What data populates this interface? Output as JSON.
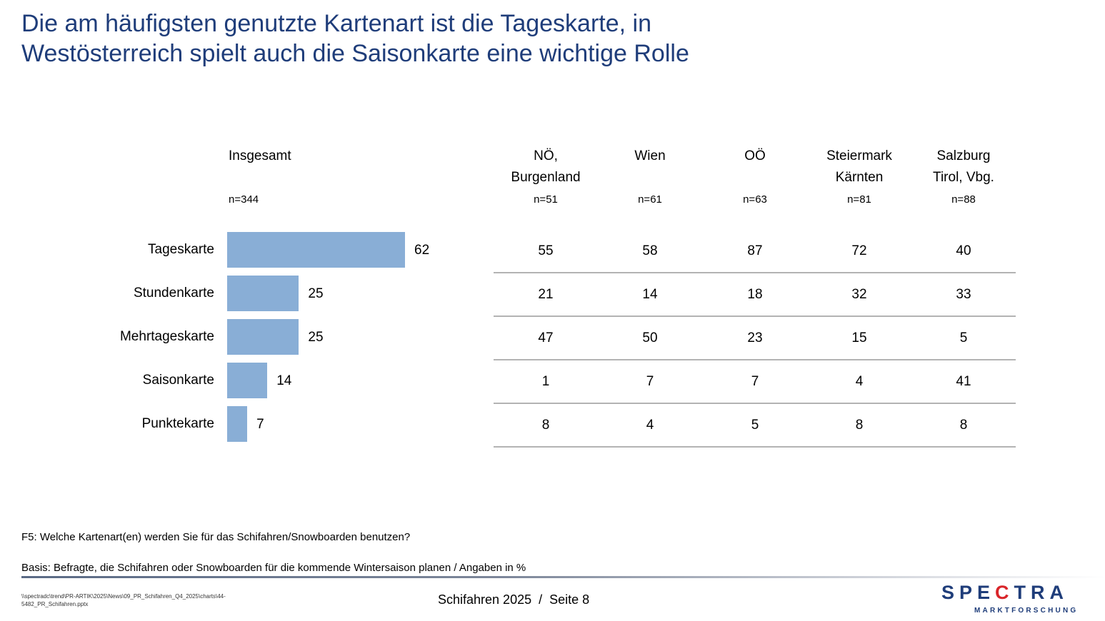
{
  "title": {
    "line1": "Die am häufigsten genutzte Kartenart ist die Tageskarte, in",
    "line2": "Westösterreich spielt auch die Saisonkarte eine wichtige Rolle"
  },
  "chart_data": {
    "type": "bar",
    "orientation": "horizontal",
    "title": "Insgesamt",
    "n": "n=344",
    "categories": [
      "Tageskarte",
      "Stundenkarte",
      "Mehrtageskarte",
      "Saisonkarte",
      "Punktekarte"
    ],
    "values": [
      62,
      25,
      25,
      14,
      7
    ],
    "value_labels": [
      "62",
      "25",
      "25",
      "14",
      "7"
    ],
    "xlim": [
      0,
      100
    ],
    "unit": "%",
    "bar_color": "#89aed6",
    "grid": false,
    "legend": "none"
  },
  "table": {
    "columns": [
      {
        "line1": "NÖ,",
        "line2": "Burgenland",
        "n": "n=51"
      },
      {
        "line1": "Wien",
        "line2": "",
        "n": "n=61"
      },
      {
        "line1": "OÖ",
        "line2": "",
        "n": "n=63"
      },
      {
        "line1": "Steiermark",
        "line2": "Kärnten",
        "n": "n=81"
      },
      {
        "line1": "Salzburg",
        "line2": "Tirol, Vbg.",
        "n": "n=88"
      }
    ],
    "rows": [
      [
        "55",
        "58",
        "87",
        "72",
        "40"
      ],
      [
        "21",
        "14",
        "18",
        "32",
        "33"
      ],
      [
        "47",
        "50",
        "23",
        "15",
        "5"
      ],
      [
        "1",
        "7",
        "7",
        "4",
        "41"
      ],
      [
        "8",
        "4",
        "5",
        "8",
        "8"
      ]
    ]
  },
  "footer": {
    "question": "F5: Welche Kartenart(en) werden Sie für das Schifahren/Snowboarden benutzen?",
    "basis": "Basis: Befragte, die Schifahren oder Snowboarden für die kommende Wintersaison planen / Angaben in %",
    "filepath_line1": "\\\\spectradc\\trend\\PR-ARTIK\\2025\\News\\09_PR_Schifahren_Q4_2025\\charts\\44-",
    "filepath_line2": "5482_PR_Schifahren.pptx",
    "page_info": "Schifahren 2025  /  Seite 8"
  },
  "logo": {
    "main": "SPECTRA",
    "sub": "MARKTFORSCHUNG",
    "text_color": "#1f3d7a",
    "accent_color": "#d9252a"
  }
}
